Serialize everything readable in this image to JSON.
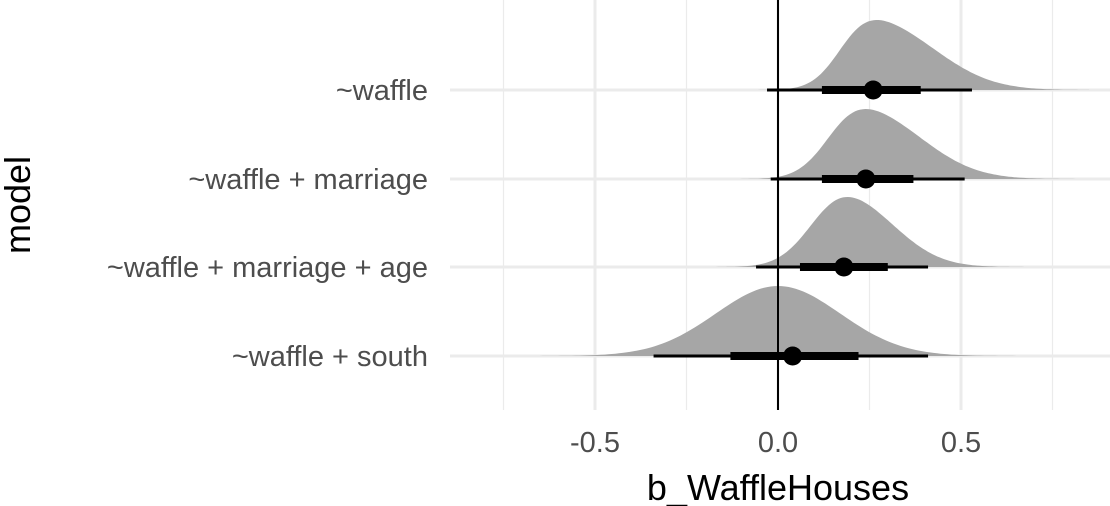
{
  "chart_data": {
    "type": "halfeye",
    "title": "",
    "xlabel": "b_WaffleHouses",
    "ylabel": "model",
    "xlim": [
      -0.9,
      0.9
    ],
    "x_ticks": [
      -0.5,
      0.0,
      0.5
    ],
    "x_tick_labels": [
      "-0.5",
      "0.0",
      "0.5"
    ],
    "reference_line_x": 0,
    "grid": true,
    "colors": {
      "density": "#a6a6a6",
      "interval": "#000000",
      "grid": "#ebebeb",
      "text": "#4d4d4d"
    },
    "categories": [
      "~waffle",
      "~waffle + marriage",
      "~waffle + marriage + age",
      "~waffle + south"
    ],
    "series": [
      {
        "label": "~waffle",
        "point": 0.26,
        "interval_66": [
          0.12,
          0.39
        ],
        "interval_95": [
          -0.03,
          0.53
        ],
        "mode": 0.27,
        "sd": 0.12,
        "skew": 0.3,
        "support": [
          -0.3,
          0.85
        ]
      },
      {
        "label": "~waffle + marriage",
        "point": 0.24,
        "interval_66": [
          0.12,
          0.37
        ],
        "interval_95": [
          -0.02,
          0.51
        ],
        "mode": 0.24,
        "sd": 0.12,
        "skew": 0.25,
        "support": [
          -0.3,
          0.82
        ]
      },
      {
        "label": "~waffle + marriage + age",
        "point": 0.18,
        "interval_66": [
          0.06,
          0.3
        ],
        "interval_95": [
          -0.06,
          0.41
        ],
        "mode": 0.19,
        "sd": 0.11,
        "skew": 0.15,
        "support": [
          -0.35,
          0.68
        ]
      },
      {
        "label": "~waffle + south",
        "point": 0.04,
        "interval_66": [
          -0.13,
          0.22
        ],
        "interval_95": [
          -0.34,
          0.41
        ],
        "mode": 0.0,
        "sd": 0.17,
        "skew": 0.0,
        "support": [
          -0.8,
          0.78
        ]
      }
    ]
  }
}
